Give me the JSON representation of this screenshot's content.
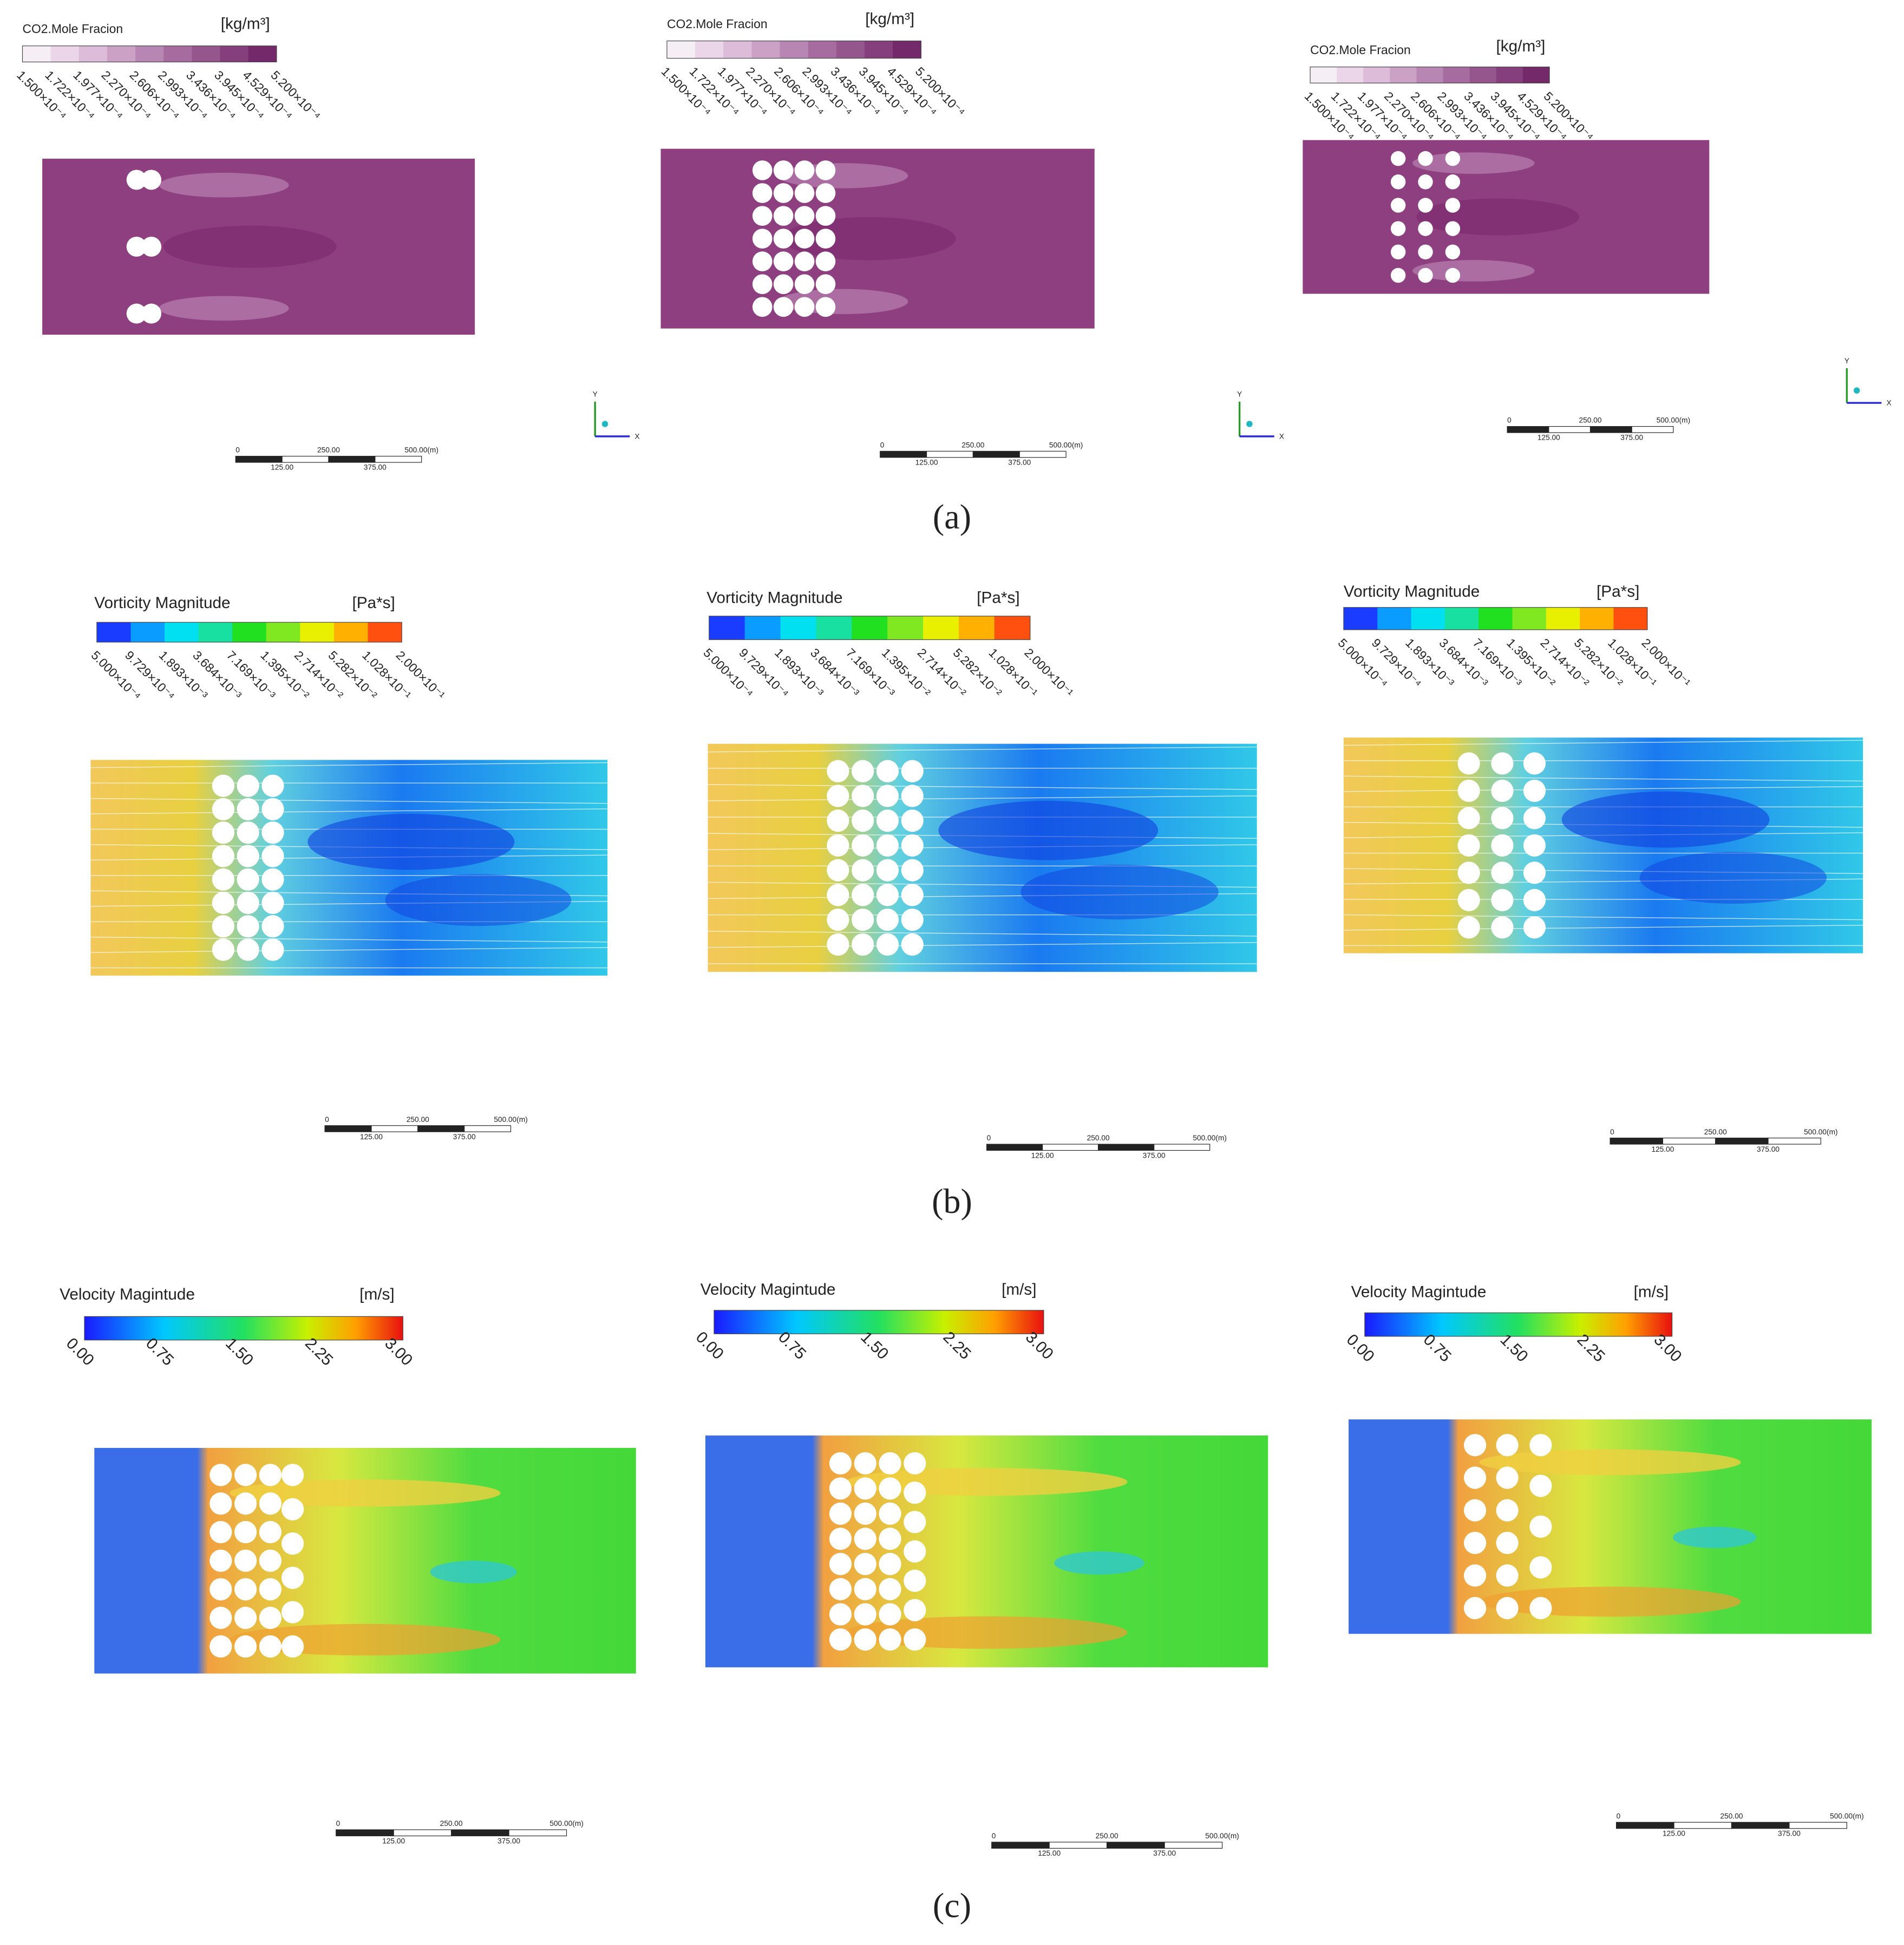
{
  "panels": [
    {
      "label": "(a)",
      "plots": [
        {
          "legend_title": "CO2.Mole Fracion",
          "unit": "[kg/m³]",
          "legend_ticks": [
            "1.500×10⁻⁴",
            "1.722×10⁻⁴",
            "1.977×10⁻⁴",
            "2.270×10⁻⁴",
            "2.606×10⁻⁴",
            "2.993×10⁻⁴",
            "3.436×10⁻⁴",
            "3.945×10⁻⁴",
            "4.529×10⁻⁴",
            "5.200×10⁻⁴"
          ],
          "scale_labels": [
            "0",
            "250.00",
            "500.00(m)",
            "125.00",
            "375.00"
          ],
          "axes": [
            "Y",
            "X"
          ]
        },
        {
          "legend_title": "CO2.Mole Fracion",
          "unit": "[kg/m³]",
          "legend_ticks": [
            "1.500×10⁻⁴",
            "1.722×10⁻⁴",
            "1.977×10⁻⁴",
            "2.270×10⁻⁴",
            "2.606×10⁻⁴",
            "2.993×10⁻⁴",
            "3.436×10⁻⁴",
            "3.945×10⁻⁴",
            "4.529×10⁻⁴",
            "5.200×10⁻⁴"
          ],
          "scale_labels": [
            "0",
            "250.00",
            "500.00(m)",
            "125.00",
            "375.00"
          ],
          "axes": [
            "Y",
            "X"
          ]
        },
        {
          "legend_title": "CO2.Mole Fracion",
          "unit": "[kg/m³]",
          "legend_ticks": [
            "1.500×10⁻⁴",
            "1.722×10⁻⁴",
            "1.977×10⁻⁴",
            "2.270×10⁻⁴",
            "2.606×10⁻⁴",
            "2.993×10⁻⁴",
            "3.436×10⁻⁴",
            "3.945×10⁻⁴",
            "4.529×10⁻⁴",
            "5.200×10⁻⁴"
          ],
          "scale_labels": [
            "0",
            "250.00",
            "500.00(m)",
            "125.00",
            "375.00"
          ],
          "axes": [
            "Y",
            "X"
          ]
        }
      ]
    },
    {
      "label": "(b)",
      "plots": [
        {
          "legend_title": "Vorticity Magnitude",
          "unit": "[Pa*s]",
          "legend_ticks": [
            "5.000×10⁻⁴",
            "9.729×10⁻⁴",
            "1.893×10⁻³",
            "3.684×10⁻³",
            "7.169×10⁻³",
            "1.395×10⁻²",
            "2.714×10⁻²",
            "5.282×10⁻²",
            "1.028×10⁻¹",
            "2.000×10⁻¹"
          ],
          "scale_labels": [
            "0",
            "250.00",
            "500.00(m)",
            "125.00",
            "375.00"
          ]
        },
        {
          "legend_title": "Vorticity Magnitude",
          "unit": "[Pa*s]",
          "legend_ticks": [
            "5.000×10⁻⁴",
            "9.729×10⁻⁴",
            "1.893×10⁻³",
            "3.684×10⁻³",
            "7.169×10⁻³",
            "1.395×10⁻²",
            "2.714×10⁻²",
            "5.282×10⁻²",
            "1.028×10⁻¹",
            "2.000×10⁻¹"
          ],
          "scale_labels": [
            "0",
            "250.00",
            "500.00(m)",
            "125.00",
            "375.00"
          ]
        },
        {
          "legend_title": "Vorticity Magnitude",
          "unit": "[Pa*s]",
          "legend_ticks": [
            "5.000×10⁻⁴",
            "9.729×10⁻⁴",
            "1.893×10⁻³",
            "3.684×10⁻³",
            "7.169×10⁻³",
            "1.395×10⁻²",
            "2.714×10⁻²",
            "5.282×10⁻²",
            "1.028×10⁻¹",
            "2.000×10⁻¹"
          ],
          "scale_labels": [
            "0",
            "250.00",
            "500.00(m)",
            "125.00",
            "375.00"
          ]
        }
      ]
    },
    {
      "label": "(c)",
      "plots": [
        {
          "legend_title": "Velocity Magintude",
          "unit": "[m/s]",
          "legend_ticks": [
            "0.00",
            "0.75",
            "1.50",
            "2.25",
            "3.00"
          ],
          "scale_labels": [
            "0",
            "250.00",
            "500.00(m)",
            "125.00",
            "375.00"
          ]
        },
        {
          "legend_title": "Velocity Magintude",
          "unit": "[m/s]",
          "legend_ticks": [
            "0.00",
            "0.75",
            "1.50",
            "2.25",
            "3.00"
          ],
          "scale_labels": [
            "0",
            "250.00",
            "500.00(m)",
            "125.00",
            "375.00"
          ]
        },
        {
          "legend_title": "Velocity Magintude",
          "unit": "[m/s]",
          "legend_ticks": [
            "0.00",
            "0.75",
            "1.50",
            "2.25",
            "3.00"
          ],
          "scale_labels": [
            "0",
            "250.00",
            "500.00(m)",
            "125.00",
            "375.00"
          ]
        }
      ]
    }
  ]
}
